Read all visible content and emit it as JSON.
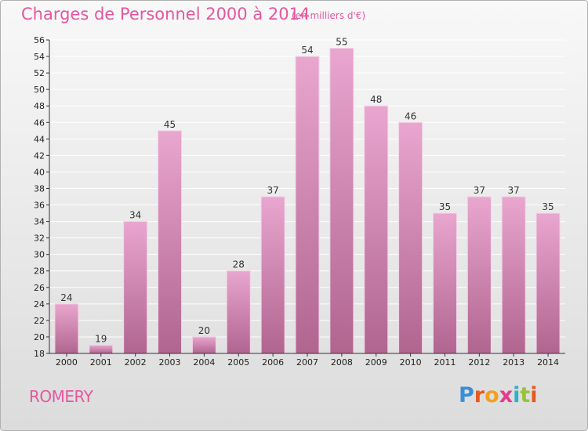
{
  "header": {
    "title": "Charges de Personnel 2000 à 2014",
    "unit": "(en milliers d'€)"
  },
  "footer": {
    "commune": "ROMERY",
    "logo_text": "Proxiti"
  },
  "colors": {
    "title": "#e4579e",
    "bar_top": "#e9a6cf",
    "bar_bottom": "#b0658f",
    "axis": "#333333"
  },
  "chart_data": {
    "type": "bar",
    "categories": [
      "2000",
      "2001",
      "2002",
      "2003",
      "2004",
      "2005",
      "2006",
      "2007",
      "2008",
      "2009",
      "2010",
      "2011",
      "2012",
      "2013",
      "2014"
    ],
    "values": [
      24,
      19,
      34,
      45,
      20,
      28,
      37,
      54,
      55,
      48,
      46,
      35,
      37,
      37,
      35
    ],
    "data_labels": [
      "24",
      "19",
      "34",
      "45",
      "20",
      "28",
      "37",
      "54",
      "55",
      "48",
      "46",
      "35",
      "37",
      "37",
      "35"
    ],
    "ylim": [
      18,
      56
    ],
    "yticks": [
      18,
      20,
      22,
      24,
      26,
      28,
      30,
      32,
      34,
      36,
      38,
      40,
      42,
      44,
      46,
      48,
      50,
      52,
      54,
      56
    ],
    "grid": true
  }
}
